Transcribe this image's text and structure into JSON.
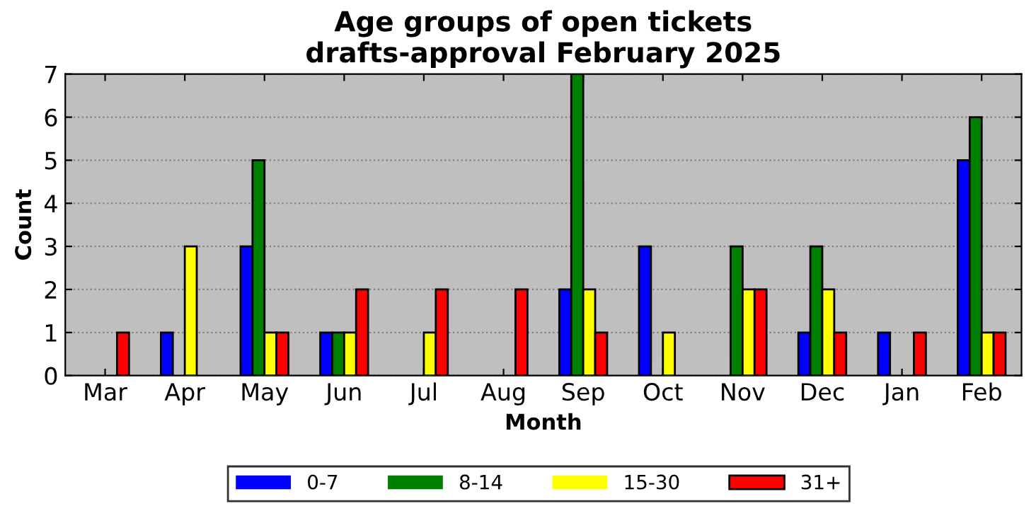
{
  "chart_data": {
    "type": "bar",
    "title": "Age groups of open tickets\ndrafts-approval February 2025",
    "xlabel": "Month",
    "ylabel": "Count",
    "categories": [
      "Mar",
      "Apr",
      "May",
      "Jun",
      "Jul",
      "Aug",
      "Sep",
      "Oct",
      "Nov",
      "Dec",
      "Jan",
      "Feb"
    ],
    "series": [
      {
        "name": "0-7",
        "color": "#0000ff",
        "values": [
          0,
          1,
          3,
          1,
          0,
          0,
          2,
          3,
          0,
          1,
          1,
          5
        ]
      },
      {
        "name": "8-14",
        "color": "#008000",
        "values": [
          0,
          0,
          5,
          1,
          0,
          0,
          7,
          0,
          3,
          3,
          0,
          6
        ]
      },
      {
        "name": "15-30",
        "color": "#ffff00",
        "values": [
          0,
          3,
          1,
          1,
          1,
          0,
          2,
          1,
          2,
          2,
          0,
          1
        ]
      },
      {
        "name": "31+",
        "color": "#ff0000",
        "values": [
          1,
          0,
          1,
          2,
          2,
          2,
          1,
          0,
          2,
          1,
          1,
          1
        ]
      }
    ],
    "ylim": [
      0,
      7
    ],
    "yticks": [
      0,
      1,
      2,
      3,
      4,
      5,
      6,
      7
    ],
    "grid": "y",
    "legend": "bottom"
  }
}
